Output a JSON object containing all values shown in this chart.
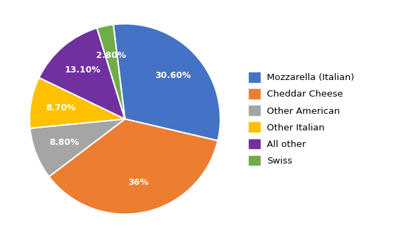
{
  "labels": [
    "Mozzarella (Italian)",
    "Cheddar Cheese",
    "Other American",
    "Other Italian",
    "All other",
    "Swiss"
  ],
  "values": [
    30.6,
    36.0,
    8.8,
    8.7,
    13.1,
    2.8
  ],
  "colors": [
    "#4472C4",
    "#ED7D31",
    "#A5A5A5",
    "#FFC000",
    "#7030A0",
    "#70AD47"
  ],
  "pct_labels": [
    "30.60%",
    "36%",
    "8.80%",
    "8.70%",
    "13.10%",
    "2.80%"
  ],
  "startangle": 97,
  "background_color": "#FFFFFF",
  "legend_fontsize": 9.5,
  "autopct_fontsize": 9,
  "pctdistance": 0.68
}
